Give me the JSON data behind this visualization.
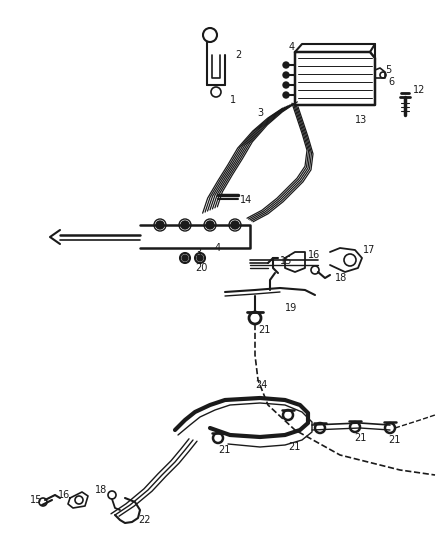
{
  "bg_color": "#ffffff",
  "line_color": "#1a1a1a",
  "label_color": "#1a1a1a",
  "label_fontsize": 7.0,
  "fig_width": 4.38,
  "fig_height": 5.33,
  "dpi": 100
}
